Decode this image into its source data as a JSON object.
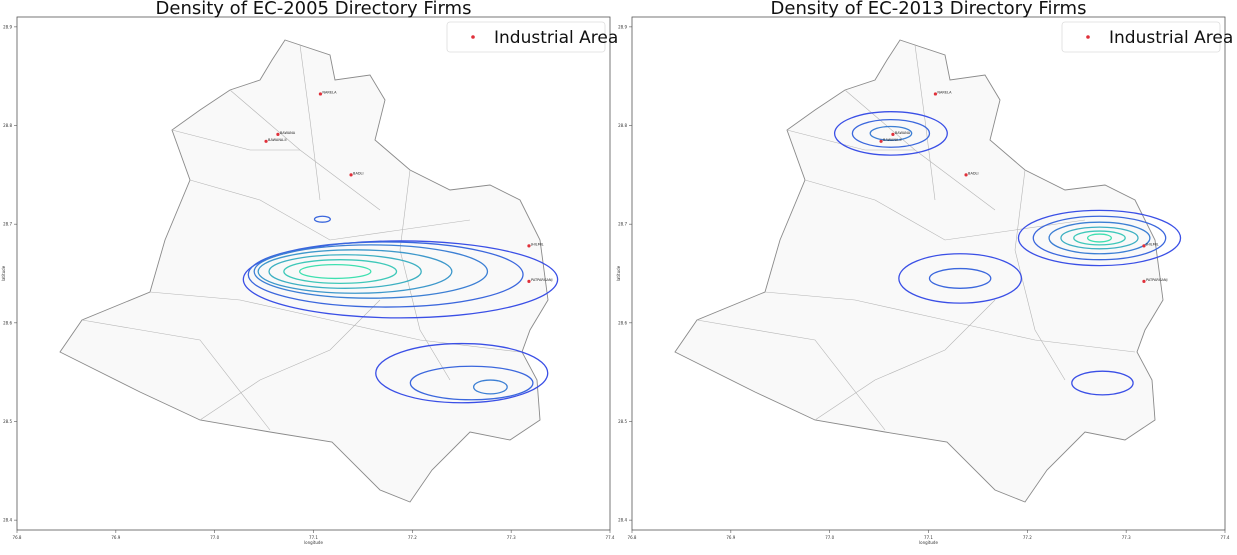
{
  "chart_data": [
    {
      "type": "contour",
      "title": "Density of EC-2005 Directory Firms",
      "xlabel": "longitude",
      "ylabel": "latitude",
      "xlim": [
        76.8,
        77.4
      ],
      "ylim": [
        28.39,
        28.91
      ],
      "xticks": [
        "76.8",
        "76.9",
        "77.0",
        "77.1",
        "77.2",
        "77.3",
        "77.4"
      ],
      "yticks": [
        "28.9",
        "28.8",
        "28.7",
        "28.6",
        "28.5",
        "28.4"
      ],
      "legend": {
        "label": "Industrial Area",
        "placement": "top-right"
      },
      "contours": [
        {
          "lon": 77.188,
          "lat": 28.644,
          "rlon": 0.159,
          "rlat": 0.039,
          "level": 0
        },
        {
          "lon": 77.173,
          "lat": 28.649,
          "rlon": 0.139,
          "rlat": 0.033,
          "level": 1
        },
        {
          "lon": 77.158,
          "lat": 28.652,
          "rlon": 0.118,
          "rlat": 0.027,
          "level": 2
        },
        {
          "lon": 77.142,
          "lat": 28.652,
          "rlon": 0.098,
          "rlat": 0.022,
          "level": 3
        },
        {
          "lon": 77.132,
          "lat": 28.652,
          "rlon": 0.077,
          "rlat": 0.017,
          "level": 4
        },
        {
          "lon": 77.127,
          "lat": 28.652,
          "rlon": 0.057,
          "rlat": 0.012,
          "level": 5
        },
        {
          "lon": 77.122,
          "lat": 28.652,
          "rlon": 0.036,
          "rlat": 0.007,
          "level": 6
        },
        {
          "lon": 77.109,
          "lat": 28.705,
          "rlon": 0.008,
          "rlat": 0.003,
          "level": 1
        },
        {
          "lon": 77.25,
          "lat": 28.549,
          "rlon": 0.087,
          "rlat": 0.03,
          "level": 0
        },
        {
          "lon": 77.26,
          "lat": 28.539,
          "rlon": 0.062,
          "rlat": 0.017,
          "level": 1
        },
        {
          "lon": 77.279,
          "lat": 28.535,
          "rlon": 0.017,
          "rlat": 0.007,
          "level": 2
        }
      ]
    },
    {
      "type": "contour",
      "title": "Density of EC-2013 Directory Firms",
      "xlabel": "longitude",
      "ylabel": "latitude",
      "xlim": [
        76.8,
        77.4
      ],
      "ylim": [
        28.39,
        28.91
      ],
      "xticks": [
        "76.8",
        "76.9",
        "77.0",
        "77.1",
        "77.2",
        "77.3",
        "77.4"
      ],
      "yticks": [
        "28.9",
        "28.8",
        "28.7",
        "28.6",
        "28.5",
        "28.4"
      ],
      "legend": {
        "label": "Industrial Area",
        "placement": "top-right"
      },
      "contours": [
        {
          "lon": 77.062,
          "lat": 28.792,
          "rlon": 0.057,
          "rlat": 0.022,
          "level": 0
        },
        {
          "lon": 77.062,
          "lat": 28.792,
          "rlon": 0.039,
          "rlat": 0.014,
          "level": 1
        },
        {
          "lon": 77.062,
          "lat": 28.792,
          "rlon": 0.021,
          "rlat": 0.007,
          "level": 2
        },
        {
          "lon": 77.132,
          "lat": 28.645,
          "rlon": 0.062,
          "rlat": 0.025,
          "level": 0
        },
        {
          "lon": 77.132,
          "lat": 28.645,
          "rlon": 0.031,
          "rlat": 0.01,
          "level": 1
        },
        {
          "lon": 77.273,
          "lat": 28.686,
          "rlon": 0.082,
          "rlat": 0.028,
          "level": 0
        },
        {
          "lon": 77.273,
          "lat": 28.686,
          "rlon": 0.067,
          "rlat": 0.022,
          "level": 1
        },
        {
          "lon": 77.273,
          "lat": 28.686,
          "rlon": 0.051,
          "rlat": 0.016,
          "level": 2
        },
        {
          "lon": 77.273,
          "lat": 28.686,
          "rlon": 0.039,
          "rlat": 0.011,
          "level": 4
        },
        {
          "lon": 77.273,
          "lat": 28.686,
          "rlon": 0.026,
          "rlat": 0.007,
          "level": 5
        },
        {
          "lon": 77.273,
          "lat": 28.686,
          "rlon": 0.012,
          "rlat": 0.004,
          "level": 6
        },
        {
          "lon": 77.276,
          "lat": 28.539,
          "rlon": 0.031,
          "rlat": 0.012,
          "level": 0
        }
      ]
    }
  ],
  "industrial_areas": [
    {
      "name": "NARELA",
      "lon": 77.107,
      "lat": 28.832
    },
    {
      "name": "BAWANA",
      "lon": 77.064,
      "lat": 28.791
    },
    {
      "name": "BAWANA-II",
      "lon": 77.052,
      "lat": 28.784
    },
    {
      "name": "BADLI",
      "lon": 77.138,
      "lat": 28.75
    },
    {
      "name": "JHILMIL",
      "lon": 77.318,
      "lat": 28.678
    },
    {
      "name": "PATPARGANJ",
      "lon": 77.318,
      "lat": 28.642
    }
  ],
  "colors": {
    "point": "#e0303a",
    "contour_low": "#3a4fe6",
    "contour_high": "#3fe0b0",
    "boundary": "#8a8a8a",
    "map_fill": "#f9f9f9"
  }
}
